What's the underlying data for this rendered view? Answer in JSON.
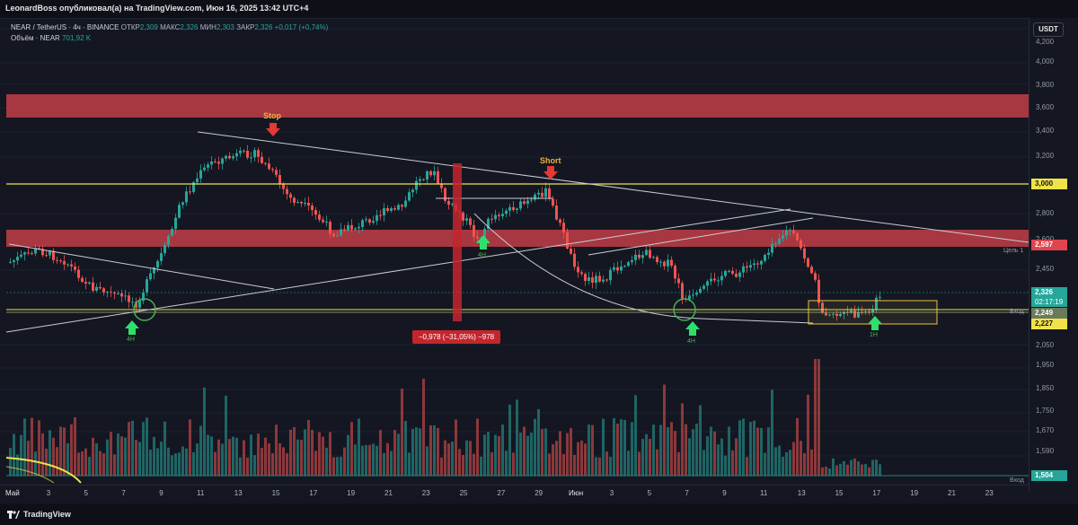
{
  "header": {
    "publish_line": "LeonardBoss опубликовал(а) на TradingView.com, Июн 16, 2025 13:42 UTC+4"
  },
  "legend": {
    "symbol_line": "NEAR / TetherUS · 4ч · BINANCE",
    "open_label": "ОТКР",
    "open_value": "2,309",
    "high_label": "МАКС",
    "high_value": "2,326",
    "low_label": "МИН",
    "low_value": "2,303",
    "close_label": "ЗАКР",
    "close_value": "2,326",
    "change_value": "+0,017 (+0,74%)",
    "volume_label": "Объём · NEAR",
    "volume_value": "701,92 K"
  },
  "currency": "USDT",
  "price_ticks": [
    "4,200",
    "4,000",
    "3,800",
    "3,600",
    "3,400",
    "3,200",
    "2,800",
    "2,600",
    "2,450",
    "1,950",
    "1,850",
    "1,750",
    "1,670",
    "1,590"
  ],
  "price_labels": {
    "level_3000": "3,000",
    "level_2597": "2,597",
    "current_price": "2,326",
    "countdown": "02:17:19",
    "entry_price": "2,249",
    "level_2227": "2,227",
    "level_2050": "2,050",
    "volume_value": "1,504"
  },
  "line_labels": {
    "target": "Цель 1",
    "entry": "Вход",
    "entry_bottom": "Вход"
  },
  "annotations": {
    "stop": "Stop",
    "short": "Short",
    "tf_4h_a": "4H",
    "tf_4h_b": "4H",
    "tf_4h_c": "4H",
    "tf_1h": "1H",
    "measure": "−0,978 (−31,05%) −978"
  },
  "x_ticks": [
    "Май",
    "3",
    "5",
    "7",
    "9",
    "11",
    "13",
    "15",
    "17",
    "19",
    "21",
    "23",
    "25",
    "27",
    "29",
    "Июн",
    "3",
    "5",
    "7",
    "9",
    "11",
    "13",
    "15",
    "17",
    "19",
    "21",
    "23"
  ],
  "footer": {
    "brand": "TradingView"
  },
  "colors": {
    "background": "#141722",
    "bull": "#26a69a",
    "bear": "#ef5350",
    "resistance_zone": "#e0444d",
    "level_line": "#f0e34a",
    "entry_zone": "#e8c23c",
    "marker_green": "#2ee06a",
    "marker_red": "#e53935"
  }
}
